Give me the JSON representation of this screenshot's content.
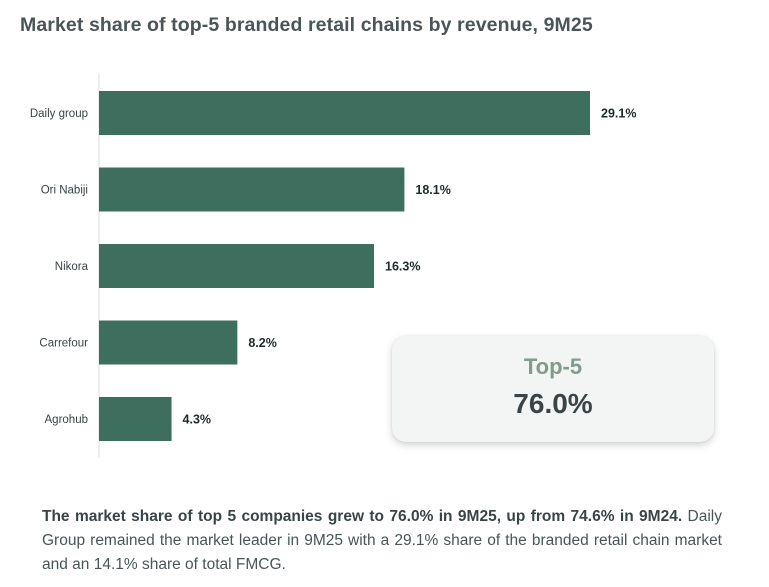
{
  "chart_data": {
    "type": "bar",
    "orientation": "horizontal",
    "title": "Market share of top-5 branded retail chains by revenue, 9M25",
    "categories": [
      "Daily group",
      "Ori Nabiji",
      "Nikora",
      "Carrefour",
      "Agrohub"
    ],
    "values": [
      29.1,
      18.1,
      16.3,
      8.2,
      4.3
    ],
    "value_labels": [
      "29.1%",
      "18.1%",
      "16.3%",
      "8.2%",
      "4.3%"
    ],
    "unit": "%",
    "xlim": [
      0,
      29.1
    ],
    "grid": false,
    "bar_color": "#3d6e5e"
  },
  "summary_box": {
    "label": "Top-5",
    "value": "76.0%"
  },
  "footnote": {
    "bold": "The market share of top 5 companies grew to 76.0% in 9M25, up from 74.6% in 9M24.",
    "rest": " Daily Group remained the market leader in 9M25 with a 29.1% share of the branded retail chain market and an 14.1% share of total FMCG."
  }
}
